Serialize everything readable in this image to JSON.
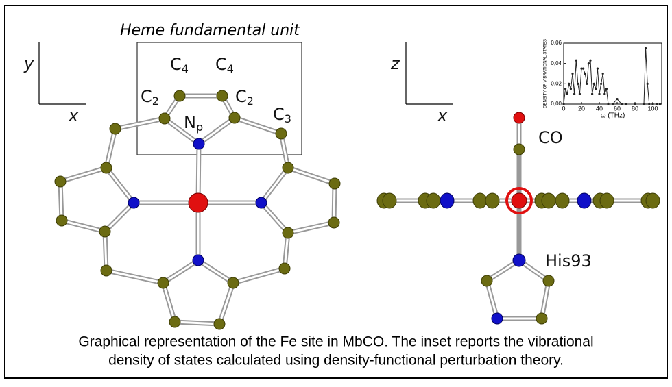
{
  "figure_labels": {
    "title": "Heme fundamental unit",
    "left_axis_vertical": "y",
    "left_axis_horizontal": "x",
    "right_axis_vertical": "z",
    "right_axis_horizontal": "x",
    "co": "CO",
    "his": "His93"
  },
  "atom_labels": [
    {
      "symbol": "C",
      "subscript": "4"
    },
    {
      "symbol": "C",
      "subscript": "4"
    },
    {
      "symbol": "C",
      "subscript": "2"
    },
    {
      "symbol": "C",
      "subscript": "2"
    },
    {
      "symbol": "N",
      "subscript": "p"
    },
    {
      "symbol": "C",
      "subscript": "3"
    }
  ],
  "caption": [
    "Graphical representation of the Fe site in MbCO. The inset reports the vibrational",
    "density of states calculated using density-functional perturbation theory."
  ],
  "chart_data": {
    "type": "line",
    "y_label": "DENSITY OF VIBRATIONAL STATES",
    "x_label": "ω (THz)",
    "x": [
      0,
      2,
      4,
      6,
      8,
      10,
      12,
      14,
      16,
      18,
      20,
      22,
      24,
      26,
      28,
      30,
      32,
      34,
      36,
      38,
      40,
      42,
      44,
      46,
      48,
      50,
      55,
      60,
      65,
      70,
      80,
      90,
      92,
      94,
      96,
      100,
      105,
      108
    ],
    "values": [
      0.0,
      0.015,
      0.01,
      0.02,
      0.015,
      0.03,
      0.01,
      0.043,
      0.02,
      0.01,
      0.035,
      0.035,
      0.03,
      0.02,
      0.04,
      0.043,
      0.01,
      0.02,
      0.015,
      0.035,
      0.01,
      0.02,
      0.03,
      0.01,
      0.015,
      0.0,
      0.0,
      0.005,
      0.0,
      0.0,
      0.0,
      0.0,
      0.055,
      0.02,
      0.0,
      0.0,
      0.0,
      0.0
    ],
    "color": "#222222",
    "xlim": [
      0,
      110
    ],
    "ylim": [
      0,
      0.06
    ],
    "xticks": [
      0,
      20,
      40,
      60,
      80,
      100
    ],
    "yticks": [
      {
        "value": 0,
        "label": "0,00"
      },
      {
        "value": 0.02,
        "label": "0,02"
      },
      {
        "value": 0.04,
        "label": "0,04"
      },
      {
        "value": 0.06,
        "label": "0,06"
      }
    ]
  }
}
